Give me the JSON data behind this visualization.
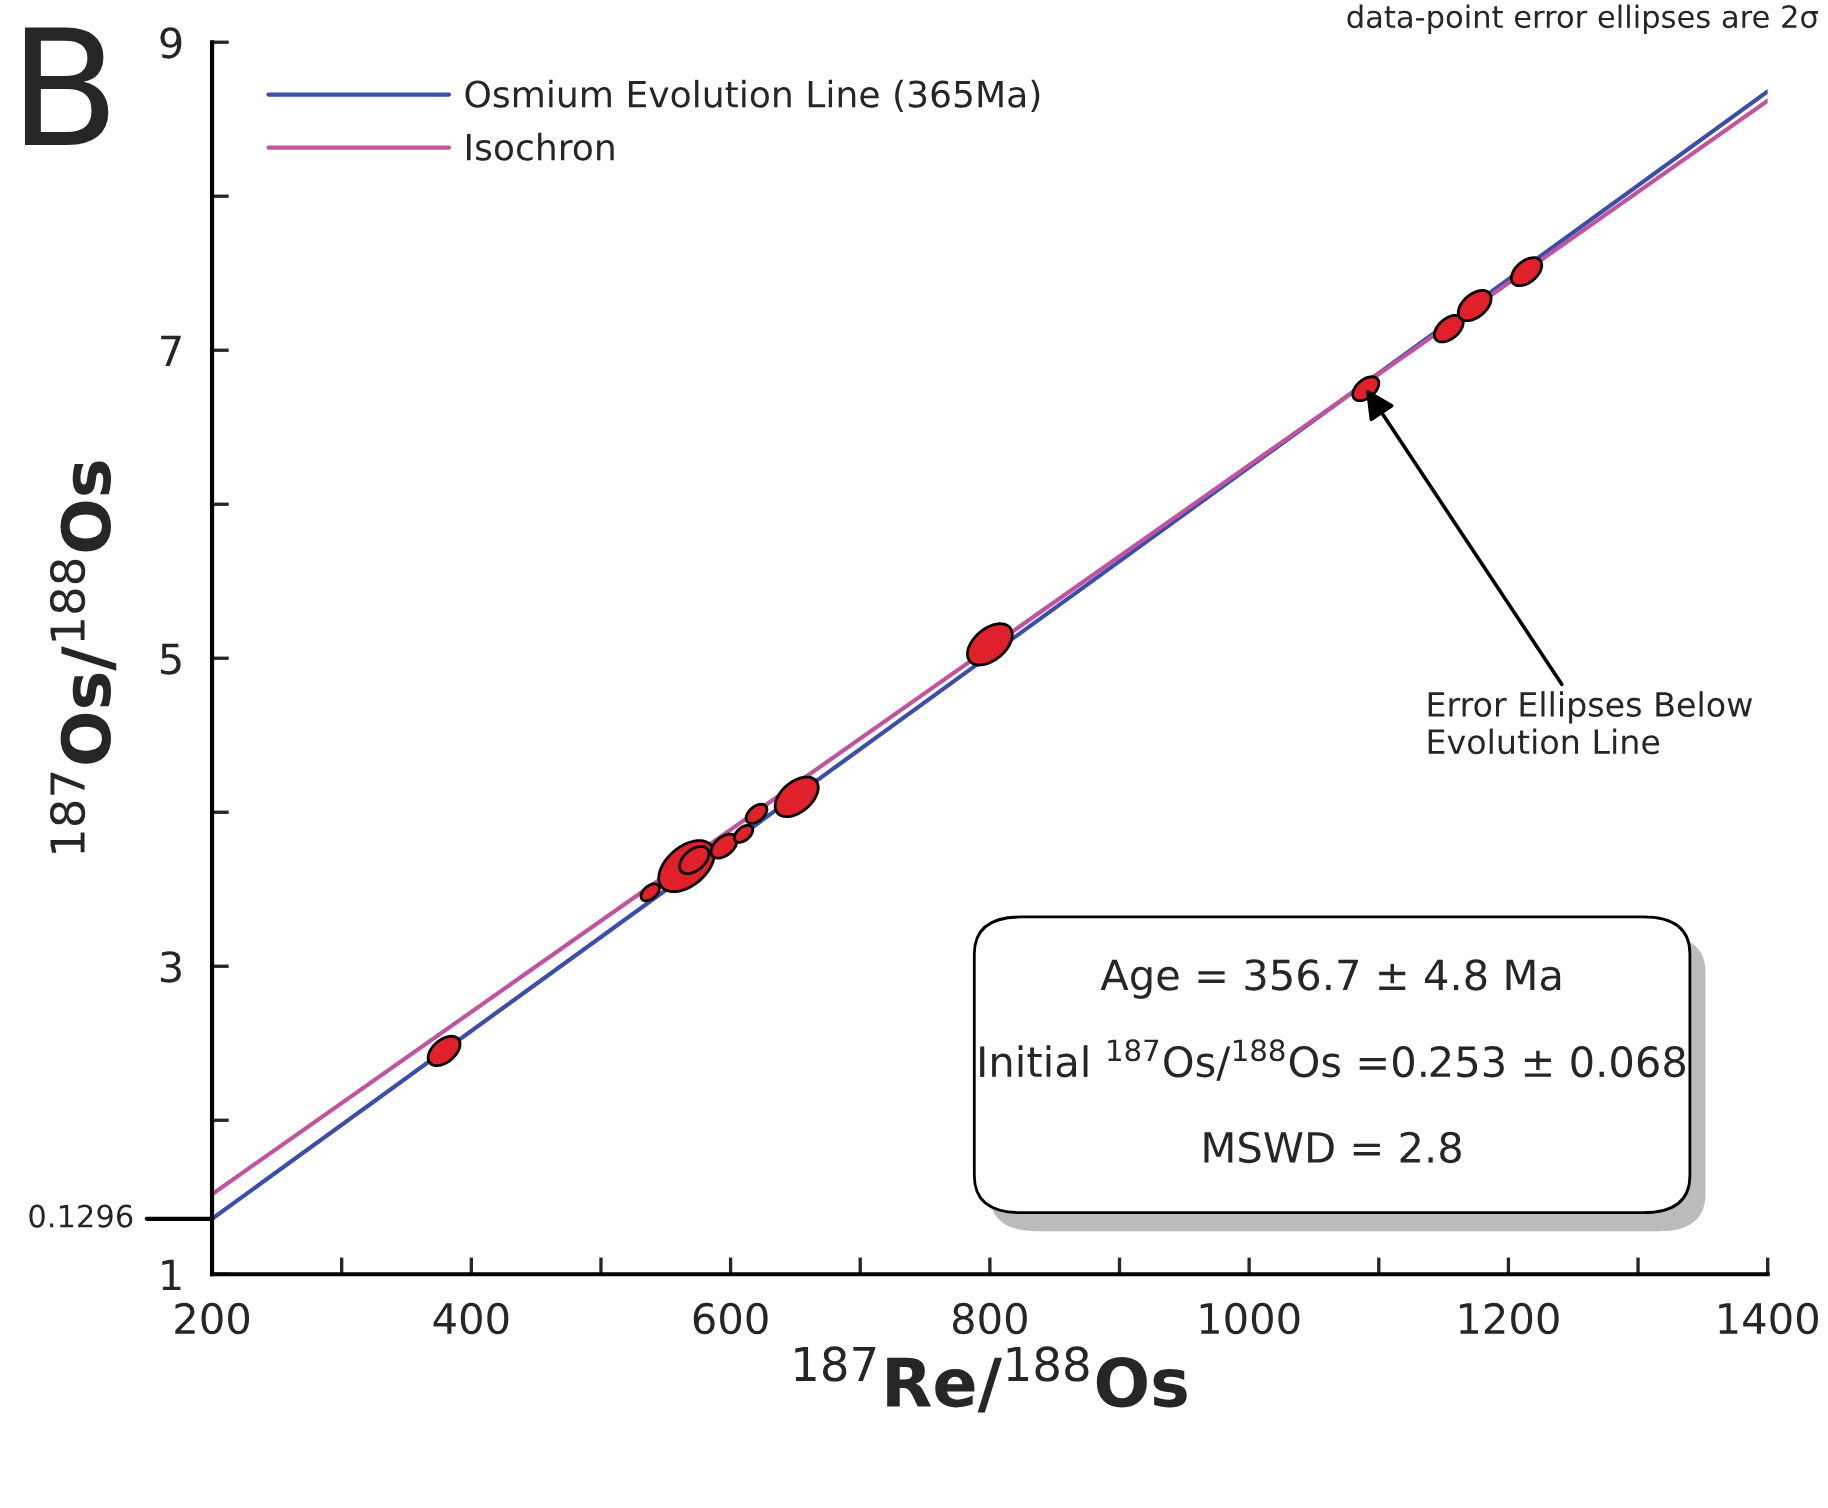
{
  "chart_data": {
    "type": "scatter",
    "xlabel": "$^{187}$Re/$^{188}$Os",
    "ylabel": "$^{187}$Os/$^{188}$Os",
    "xlim": [
      200,
      1400
    ],
    "ylim": [
      1,
      9
    ],
    "xticks": [
      200,
      {
        "value": 300,
        "label": null
      },
      400,
      {
        "value": 500,
        "label": null
      },
      600,
      {
        "value": 700,
        "label": null
      },
      800,
      {
        "value": 900,
        "label": null
      },
      1000,
      {
        "value": 1100,
        "label": null
      },
      1200,
      {
        "value": 1300,
        "label": null
      },
      1400
    ],
    "yticks": [
      1,
      {
        "value": 2,
        "label": null
      },
      3,
      {
        "value": 4,
        "label": null
      },
      5,
      {
        "value": 6,
        "label": null
      },
      7,
      {
        "value": 8,
        "label": null
      },
      9
    ],
    "grid": false,
    "legend": "top left",
    "series": [
      {
        "name": "Osmium Evolution Line (365Ma)",
        "type": "line",
        "color": "#3b4fa8",
        "x": [
          200,
          1400
        ],
        "values": [
          1.36,
          8.68
        ]
      },
      {
        "name": "Isochron",
        "type": "line",
        "color": "#c0549e",
        "x": [
          200,
          1400
        ],
        "values": [
          1.52,
          8.62
        ]
      },
      {
        "color": "#e0202a",
        "x": [
          379,
          538,
          566,
          572,
          595,
          610,
          620,
          651,
          800,
          1090,
          1154,
          1174,
          1214
        ],
        "values": [
          2.45,
          3.48,
          3.65,
          3.69,
          3.78,
          3.86,
          3.99,
          4.1,
          5.09,
          6.75,
          7.14,
          7.29,
          7.51
        ],
        "sizes": [
          0.33,
          0.11,
          1,
          0.28,
          0.22,
          0.11,
          0.14,
          0.6,
          0.65,
          0.22,
          0.27,
          0.35,
          0.3
        ]
      }
    ],
    "annotations": [
      "B",
      "data-point error ellipses are 2σ",
      "Age = 356.7 ± 4.8 Ma",
      "Initial $^{187}$Os/$^{188}$Os =0.253 ± 0.068",
      "MSWD = 2.8",
      {
        "text": "Error Ellipses Below\nEvolution Line",
        "x": 1090,
        "y": 6.75
      },
      {
        "text": "0.1296",
        "x": 200,
        "y": 1.36
      }
    ]
  }
}
